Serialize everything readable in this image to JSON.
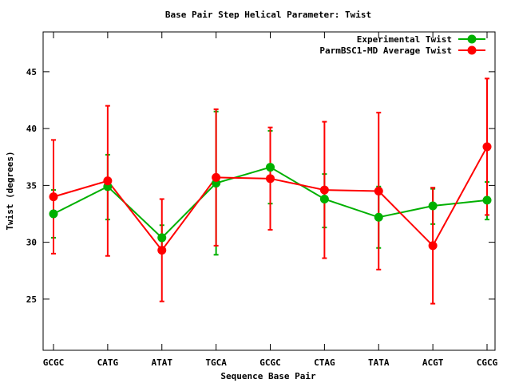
{
  "chart_data": {
    "type": "line",
    "title": "Base Pair Step Helical Parameter: Twist",
    "xlabel": "Sequence Base Pair",
    "ylabel": "Twist (degrees)",
    "categories": [
      "GCGC",
      "CATG",
      "ATAT",
      "TGCA",
      "GCGC",
      "CTAG",
      "TATA",
      "ACGT",
      "CGCG"
    ],
    "ylim": [
      20.5,
      48.5
    ],
    "yticks": [
      25,
      30,
      35,
      40,
      45
    ],
    "legend_position": "top-right",
    "grid": false,
    "series": [
      {
        "name": "Experimental Twist",
        "color": "#00b000",
        "values": [
          32.5,
          34.9,
          30.4,
          35.2,
          36.6,
          33.8,
          32.2,
          33.2,
          33.7
        ],
        "error_low": [
          30.4,
          32.0,
          29.3,
          28.9,
          33.4,
          31.3,
          29.5,
          31.6,
          32.0
        ],
        "error_high": [
          34.6,
          37.7,
          31.5,
          41.5,
          39.8,
          36.0,
          34.9,
          34.7,
          35.3
        ]
      },
      {
        "name": "ParmBSC1-MD Average Twist",
        "color": "#ff0000",
        "values": [
          34.0,
          35.4,
          29.3,
          35.7,
          35.6,
          34.6,
          34.5,
          29.7,
          38.4
        ],
        "error_low": [
          29.0,
          28.8,
          24.8,
          29.7,
          31.1,
          28.6,
          27.6,
          24.6,
          32.4
        ],
        "error_high": [
          39.0,
          42.0,
          33.8,
          41.7,
          40.1,
          40.6,
          41.4,
          34.8,
          44.4
        ]
      }
    ]
  }
}
